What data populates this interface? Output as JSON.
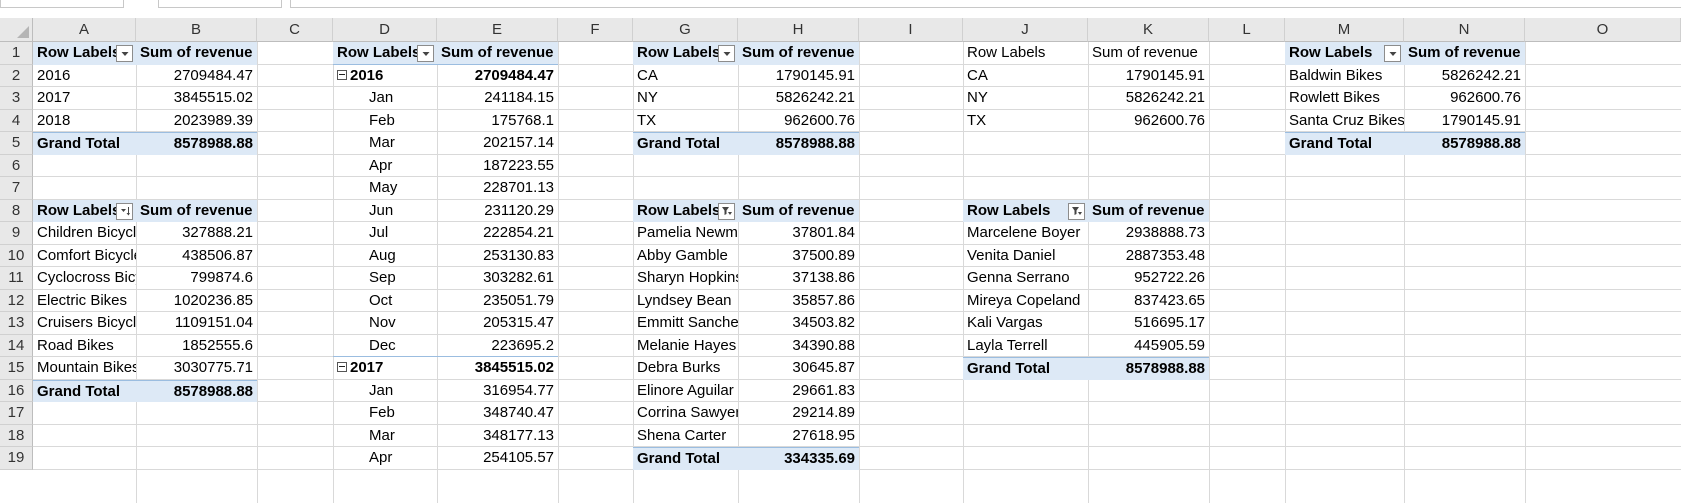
{
  "cols": [
    "A",
    "B",
    "C",
    "D",
    "E",
    "F",
    "G",
    "H",
    "I",
    "J",
    "K",
    "L",
    "M",
    "N",
    "O"
  ],
  "rows": [
    "1",
    "2",
    "3",
    "4",
    "5",
    "6",
    "7",
    "8",
    "9",
    "10",
    "11",
    "12",
    "13",
    "14",
    "15",
    "16",
    "17",
    "18",
    "19"
  ],
  "header": {
    "row_labels": "Row Labels",
    "sum_revenue": "Sum of revenue",
    "grand_total": "Grand Total"
  },
  "pivot_year": {
    "rows": [
      {
        "label": "2016",
        "value": "2709484.47"
      },
      {
        "label": "2017",
        "value": "3845515.02"
      },
      {
        "label": "2018",
        "value": "2023989.39"
      }
    ],
    "total": "8578988.88"
  },
  "pivot_category": {
    "rows": [
      {
        "label": "Children Bicycles",
        "value": "327888.21"
      },
      {
        "label": "Comfort Bicycles",
        "value": "438506.87"
      },
      {
        "label": "Cyclocross Bicycles",
        "value": "799874.6"
      },
      {
        "label": "Electric Bikes",
        "value": "1020236.85"
      },
      {
        "label": "Cruisers Bicycles",
        "value": "1109151.04"
      },
      {
        "label": "Road Bikes",
        "value": "1852555.6"
      },
      {
        "label": "Mountain Bikes",
        "value": "3030775.71"
      }
    ],
    "total": "8578988.88"
  },
  "pivot_month": {
    "groups": [
      {
        "year": "2016",
        "total": "2709484.47",
        "months": [
          {
            "label": "Jan",
            "value": "241184.15"
          },
          {
            "label": "Feb",
            "value": "175768.1"
          },
          {
            "label": "Mar",
            "value": "202157.14"
          },
          {
            "label": "Apr",
            "value": "187223.55"
          },
          {
            "label": "May",
            "value": "228701.13"
          },
          {
            "label": "Jun",
            "value": "231120.29"
          },
          {
            "label": "Jul",
            "value": "222854.21"
          },
          {
            "label": "Aug",
            "value": "253130.83"
          },
          {
            "label": "Sep",
            "value": "303282.61"
          },
          {
            "label": "Oct",
            "value": "235051.79"
          },
          {
            "label": "Nov",
            "value": "205315.47"
          },
          {
            "label": "Dec",
            "value": "223695.2"
          }
        ]
      },
      {
        "year": "2017",
        "total": "3845515.02",
        "months": [
          {
            "label": "Jan",
            "value": "316954.77"
          },
          {
            "label": "Feb",
            "value": "348740.47"
          },
          {
            "label": "Mar",
            "value": "348177.13"
          },
          {
            "label": "Apr",
            "value": "254105.57"
          }
        ]
      }
    ]
  },
  "pivot_state": {
    "rows": [
      {
        "label": "CA",
        "value": "1790145.91"
      },
      {
        "label": "NY",
        "value": "5826242.21"
      },
      {
        "label": "TX",
        "value": "962600.76"
      }
    ],
    "total": "8578988.88"
  },
  "pivot_customer": {
    "rows": [
      {
        "label": "Pamelia Newman",
        "value": "37801.84"
      },
      {
        "label": "Abby Gamble",
        "value": "37500.89"
      },
      {
        "label": "Sharyn Hopkins",
        "value": "37138.86"
      },
      {
        "label": "Lyndsey Bean",
        "value": "35857.86"
      },
      {
        "label": "Emmitt Sanchez",
        "value": "34503.82"
      },
      {
        "label": "Melanie Hayes",
        "value": "34390.88"
      },
      {
        "label": "Debra Burks",
        "value": "30645.87"
      },
      {
        "label": "Elinore Aguilar",
        "value": "29661.83"
      },
      {
        "label": "Corrina Sawyer",
        "value": "29214.89"
      },
      {
        "label": "Shena Carter",
        "value": "27618.95"
      }
    ],
    "total": "334335.69"
  },
  "plain_state": {
    "rows": [
      {
        "label": "CA",
        "value": "1790145.91"
      },
      {
        "label": "NY",
        "value": "5826242.21"
      },
      {
        "label": "TX",
        "value": "962600.76"
      }
    ]
  },
  "pivot_staff": {
    "rows": [
      {
        "label": "Marcelene Boyer",
        "value": "2938888.73"
      },
      {
        "label": "Venita Daniel",
        "value": "2887353.48"
      },
      {
        "label": "Genna Serrano",
        "value": "952722.26"
      },
      {
        "label": "Mireya Copeland",
        "value": "837423.65"
      },
      {
        "label": "Kali Vargas",
        "value": "516695.17"
      },
      {
        "label": "Layla Terrell",
        "value": "445905.59"
      }
    ],
    "total": "8578988.88"
  },
  "pivot_store": {
    "rows": [
      {
        "label": "Baldwin Bikes",
        "value": "5826242.21"
      },
      {
        "label": "Rowlett Bikes",
        "value": "962600.76"
      },
      {
        "label": "Santa Cruz Bikes",
        "value": "1790145.91"
      }
    ],
    "total": "8578988.88"
  }
}
